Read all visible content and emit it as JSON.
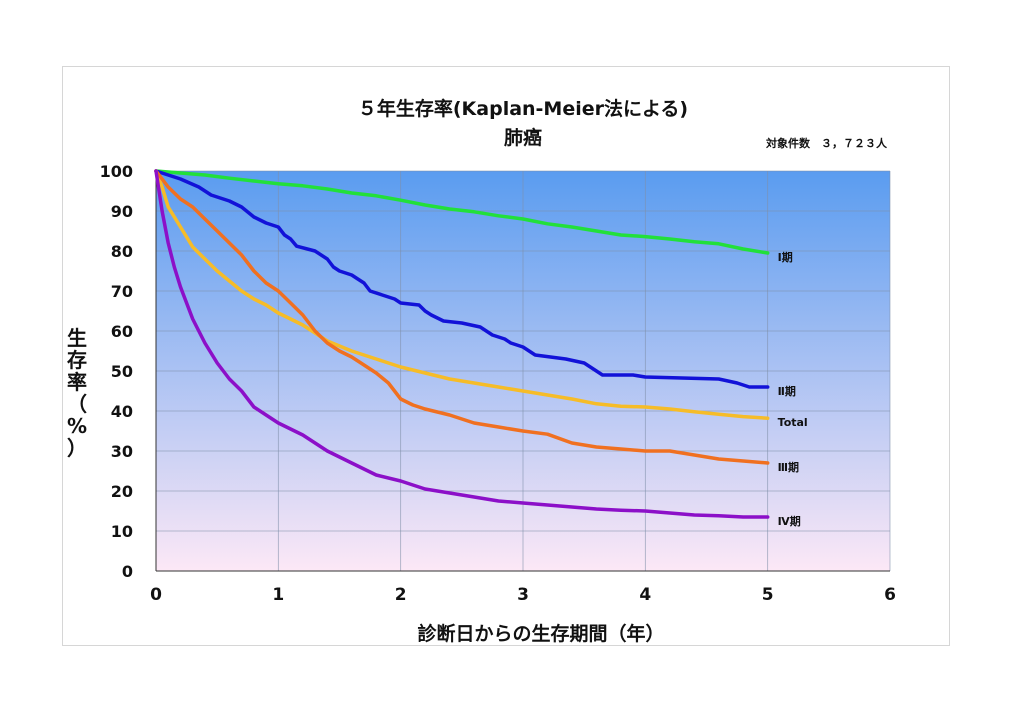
{
  "chart_data": {
    "type": "line",
    "title": "５年生存率(Kaplan-Meier法による)",
    "subtitle": "肺癌",
    "note": "対象件数　３，７２３人",
    "xlabel": "診断日からの生存期間（年）",
    "ylabel": [
      "生",
      "存",
      "率",
      "（",
      "%",
      "）"
    ],
    "xlim": [
      0,
      6
    ],
    "ylim": [
      0,
      100
    ],
    "xticks": [
      0,
      1,
      2,
      3,
      4,
      5,
      6
    ],
    "yticks": [
      0,
      10,
      20,
      30,
      40,
      50,
      60,
      70,
      80,
      90,
      100
    ],
    "grid": true,
    "background_gradient": [
      "#5a9cf0",
      "#fce8f6"
    ],
    "series": [
      {
        "name": "Ⅰ期",
        "color": "#22e03a",
        "points": [
          [
            0,
            100
          ],
          [
            0.2,
            99.5
          ],
          [
            0.4,
            99
          ],
          [
            0.6,
            98.2
          ],
          [
            0.8,
            97.5
          ],
          [
            1.0,
            96.8
          ],
          [
            1.2,
            96.3
          ],
          [
            1.4,
            95.5
          ],
          [
            1.6,
            94.5
          ],
          [
            1.8,
            93.8
          ],
          [
            2.0,
            92.7
          ],
          [
            2.2,
            91.5
          ],
          [
            2.4,
            90.5
          ],
          [
            2.6,
            89.8
          ],
          [
            2.8,
            88.8
          ],
          [
            3.0,
            88
          ],
          [
            3.2,
            86.8
          ],
          [
            3.4,
            86
          ],
          [
            3.6,
            85
          ],
          [
            3.8,
            84
          ],
          [
            4.0,
            83.6
          ],
          [
            4.2,
            83
          ],
          [
            4.4,
            82.3
          ],
          [
            4.6,
            81.8
          ],
          [
            4.8,
            80.5
          ],
          [
            5.0,
            79.5
          ]
        ]
      },
      {
        "name": "Ⅱ期",
        "color": "#1212d8",
        "points": [
          [
            0,
            100
          ],
          [
            0.1,
            99
          ],
          [
            0.2,
            98
          ],
          [
            0.35,
            96
          ],
          [
            0.45,
            94
          ],
          [
            0.6,
            92.5
          ],
          [
            0.7,
            91
          ],
          [
            0.8,
            88.5
          ],
          [
            0.9,
            87
          ],
          [
            1.0,
            86
          ],
          [
            1.05,
            84
          ],
          [
            1.1,
            83
          ],
          [
            1.15,
            81.2
          ],
          [
            1.3,
            80
          ],
          [
            1.4,
            78
          ],
          [
            1.45,
            76
          ],
          [
            1.5,
            75
          ],
          [
            1.6,
            74
          ],
          [
            1.65,
            73
          ],
          [
            1.7,
            72
          ],
          [
            1.75,
            70
          ],
          [
            1.85,
            69
          ],
          [
            1.95,
            68
          ],
          [
            2.0,
            67
          ],
          [
            2.15,
            66.5
          ],
          [
            2.2,
            65
          ],
          [
            2.25,
            64
          ],
          [
            2.35,
            62.5
          ],
          [
            2.5,
            62
          ],
          [
            2.65,
            61
          ],
          [
            2.75,
            59
          ],
          [
            2.85,
            58
          ],
          [
            2.9,
            57
          ],
          [
            3.0,
            56
          ],
          [
            3.05,
            55
          ],
          [
            3.1,
            54
          ],
          [
            3.35,
            53
          ],
          [
            3.5,
            52
          ],
          [
            3.55,
            51
          ],
          [
            3.6,
            50
          ],
          [
            3.65,
            49
          ],
          [
            3.9,
            49
          ],
          [
            4.0,
            48.5
          ],
          [
            4.6,
            48
          ],
          [
            4.75,
            47
          ],
          [
            4.85,
            46
          ],
          [
            5.0,
            46
          ]
        ]
      },
      {
        "name": "Total",
        "color": "#f6bc28",
        "points": [
          [
            0,
            100
          ],
          [
            0.05,
            96
          ],
          [
            0.1,
            91
          ],
          [
            0.2,
            86
          ],
          [
            0.3,
            81
          ],
          [
            0.4,
            78
          ],
          [
            0.5,
            75
          ],
          [
            0.6,
            72.5
          ],
          [
            0.7,
            70
          ],
          [
            0.8,
            68
          ],
          [
            0.9,
            66.5
          ],
          [
            1.0,
            64.5
          ],
          [
            1.1,
            63
          ],
          [
            1.2,
            61.5
          ],
          [
            1.4,
            57.5
          ],
          [
            1.6,
            55
          ],
          [
            1.8,
            53
          ],
          [
            2.0,
            51
          ],
          [
            2.2,
            49.5
          ],
          [
            2.4,
            48
          ],
          [
            2.6,
            47
          ],
          [
            2.8,
            46
          ],
          [
            3.0,
            45
          ],
          [
            3.2,
            44
          ],
          [
            3.4,
            43
          ],
          [
            3.6,
            41.8
          ],
          [
            3.8,
            41.2
          ],
          [
            4.0,
            41
          ],
          [
            4.2,
            40.5
          ],
          [
            4.4,
            39.8
          ],
          [
            4.6,
            39.2
          ],
          [
            4.8,
            38.6
          ],
          [
            5.0,
            38.2
          ]
        ]
      },
      {
        "name": "Ⅲ期",
        "color": "#f07020",
        "points": [
          [
            0,
            100
          ],
          [
            0.1,
            96
          ],
          [
            0.2,
            93
          ],
          [
            0.3,
            91
          ],
          [
            0.4,
            88
          ],
          [
            0.5,
            85
          ],
          [
            0.6,
            82
          ],
          [
            0.7,
            79
          ],
          [
            0.8,
            75
          ],
          [
            0.9,
            72
          ],
          [
            1.0,
            70
          ],
          [
            1.1,
            67
          ],
          [
            1.2,
            64
          ],
          [
            1.3,
            60
          ],
          [
            1.4,
            57
          ],
          [
            1.5,
            55
          ],
          [
            1.6,
            53.5
          ],
          [
            1.7,
            51.5
          ],
          [
            1.8,
            49.5
          ],
          [
            1.9,
            47
          ],
          [
            2.0,
            43
          ],
          [
            2.1,
            41.5
          ],
          [
            2.2,
            40.5
          ],
          [
            2.4,
            39
          ],
          [
            2.6,
            37
          ],
          [
            2.8,
            36
          ],
          [
            3.0,
            35
          ],
          [
            3.2,
            34.2
          ],
          [
            3.4,
            32
          ],
          [
            3.6,
            31
          ],
          [
            3.8,
            30.5
          ],
          [
            4.0,
            30
          ],
          [
            4.2,
            30
          ],
          [
            4.4,
            29
          ],
          [
            4.6,
            28
          ],
          [
            4.8,
            27.5
          ],
          [
            5.0,
            27
          ]
        ]
      },
      {
        "name": "Ⅳ期",
        "color": "#8c10c8",
        "points": [
          [
            0,
            100
          ],
          [
            0.05,
            90
          ],
          [
            0.1,
            82
          ],
          [
            0.15,
            76
          ],
          [
            0.2,
            71
          ],
          [
            0.3,
            63
          ],
          [
            0.4,
            57
          ],
          [
            0.5,
            52
          ],
          [
            0.6,
            48
          ],
          [
            0.7,
            45
          ],
          [
            0.8,
            41
          ],
          [
            0.9,
            39
          ],
          [
            1.0,
            37
          ],
          [
            1.2,
            34
          ],
          [
            1.4,
            30
          ],
          [
            1.6,
            27
          ],
          [
            1.8,
            24
          ],
          [
            2.0,
            22.5
          ],
          [
            2.2,
            20.5
          ],
          [
            2.4,
            19.5
          ],
          [
            2.6,
            18.5
          ],
          [
            2.8,
            17.5
          ],
          [
            3.0,
            17
          ],
          [
            3.2,
            16.5
          ],
          [
            3.4,
            16
          ],
          [
            3.6,
            15.5
          ],
          [
            3.8,
            15.2
          ],
          [
            4.0,
            15
          ],
          [
            4.2,
            14.5
          ],
          [
            4.4,
            14
          ],
          [
            4.6,
            13.8
          ],
          [
            4.8,
            13.5
          ],
          [
            5.0,
            13.5
          ]
        ]
      }
    ]
  }
}
